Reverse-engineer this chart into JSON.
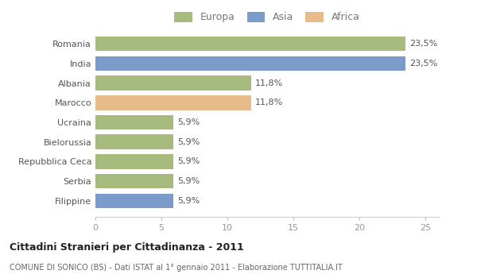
{
  "categories": [
    "Filippine",
    "Serbia",
    "Repubblica Ceca",
    "Bielorussia",
    "Ucraina",
    "Marocco",
    "Albania",
    "India",
    "Romania"
  ],
  "values": [
    5.9,
    5.9,
    5.9,
    5.9,
    5.9,
    11.8,
    11.8,
    23.5,
    23.5
  ],
  "colors": [
    "#7b9bc8",
    "#a8bb7e",
    "#a8bb7e",
    "#a8bb7e",
    "#a8bb7e",
    "#e8bc8a",
    "#a8bb7e",
    "#7b9bc8",
    "#a8bb7e"
  ],
  "labels": [
    "5,9%",
    "5,9%",
    "5,9%",
    "5,9%",
    "5,9%",
    "11,8%",
    "11,8%",
    "23,5%",
    "23,5%"
  ],
  "legend_labels": [
    "Europa",
    "Asia",
    "Africa"
  ],
  "legend_colors": [
    "#a8bb7e",
    "#7b9bc8",
    "#e8bc8a"
  ],
  "title": "Cittadini Stranieri per Cittadinanza - 2011",
  "subtitle": "COMUNE DI SONICO (BS) - Dati ISTAT al 1° gennaio 2011 - Elaborazione TUTTITALIA.IT",
  "xlim": [
    0,
    26
  ],
  "xticks": [
    0,
    5,
    10,
    15,
    20,
    25
  ],
  "bg_color": "#ffffff",
  "bar_height": 0.75
}
